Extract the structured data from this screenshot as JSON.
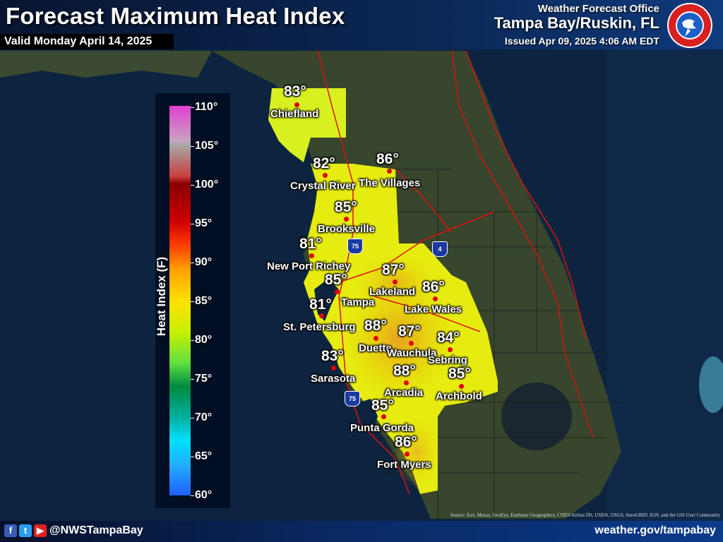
{
  "header": {
    "title": "Forecast Maximum Heat Index",
    "valid": "Valid Monday April 14, 2025",
    "office_label": "Weather Forecast Office",
    "office_name": "Tampa Bay/Ruskin, FL",
    "issued": "Issued Apr 09, 2025 4:06 AM EDT"
  },
  "legend": {
    "title": "Heat Index (F)",
    "ticks": [
      "110°",
      "105°",
      "100°",
      "95°",
      "90°",
      "85°",
      "80°",
      "75°",
      "70°",
      "65°",
      "60°"
    ]
  },
  "cities": [
    {
      "name": "Chiefland",
      "temp": "83°"
    },
    {
      "name": "Crystal River",
      "temp": "82°"
    },
    {
      "name": "The Villages",
      "temp": "86°"
    },
    {
      "name": "Brooksville",
      "temp": "85°"
    },
    {
      "name": "New Port Richey",
      "temp": "81°"
    },
    {
      "name": "Tampa",
      "temp": "85°"
    },
    {
      "name": "Lakeland",
      "temp": "87°"
    },
    {
      "name": "Lake Wales",
      "temp": "86°"
    },
    {
      "name": "St. Petersburg",
      "temp": "81°"
    },
    {
      "name": "Duette",
      "temp": "88°"
    },
    {
      "name": "Wauchula",
      "temp": "87°"
    },
    {
      "name": "Sebring",
      "temp": "84°"
    },
    {
      "name": "Sarasota",
      "temp": "83°"
    },
    {
      "name": "Arcadia",
      "temp": "88°"
    },
    {
      "name": "Archbold",
      "temp": "85°"
    },
    {
      "name": "Punta Gorda",
      "temp": "85°"
    },
    {
      "name": "Fort Myers",
      "temp": "86°"
    }
  ],
  "highways": [
    {
      "name": "I-75 shield north",
      "label": "75"
    },
    {
      "name": "I-4 shield",
      "label": "4"
    },
    {
      "name": "I-75 shield south",
      "label": "75"
    }
  ],
  "footer": {
    "handle": "@NWSTampaBay",
    "website": "weather.gov/tampabay",
    "source": "Source: Esri, Maxar, GeoEye, Earthstar Geographics, CNES/Airbus DS, USDA, USGS, AeroGRID, IGN, and the GIS User Community"
  },
  "colors": {
    "heat_low": "#e6f000",
    "heat_high": "#f0a800",
    "water": "#0d2440",
    "land": "#3a4a30"
  }
}
